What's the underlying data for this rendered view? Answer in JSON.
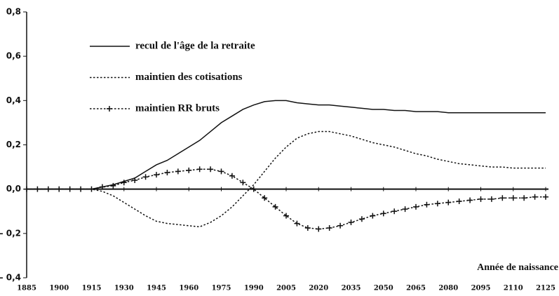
{
  "chart_data": {
    "type": "line",
    "xlabel": "Année de naissance",
    "x": [
      1885,
      1890,
      1895,
      1900,
      1905,
      1910,
      1915,
      1920,
      1925,
      1930,
      1935,
      1940,
      1945,
      1950,
      1955,
      1960,
      1965,
      1970,
      1975,
      1980,
      1985,
      1990,
      1995,
      2000,
      2005,
      2010,
      2015,
      2020,
      2025,
      2030,
      2035,
      2040,
      2045,
      2050,
      2055,
      2060,
      2065,
      2070,
      2075,
      2080,
      2085,
      2090,
      2095,
      2100,
      2105,
      2110,
      2115,
      2120,
      2125
    ],
    "series": [
      {
        "name": "recul de l'âge de la retraite",
        "color": "#111111",
        "linestyle": "solid",
        "marker": "none",
        "values": [
          0,
          0,
          0,
          0,
          0,
          0,
          0,
          0.01,
          0.02,
          0.035,
          0.05,
          0.08,
          0.11,
          0.13,
          0.16,
          0.19,
          0.22,
          0.26,
          0.3,
          0.33,
          0.36,
          0.38,
          0.395,
          0.4,
          0.4,
          0.39,
          0.385,
          0.38,
          0.38,
          0.375,
          0.37,
          0.365,
          0.36,
          0.36,
          0.355,
          0.355,
          0.35,
          0.35,
          0.35,
          0.345,
          0.345,
          0.345,
          0.345,
          0.345,
          0.345,
          0.345,
          0.345,
          0.345,
          0.345
        ]
      },
      {
        "name": "maintien des cotisations",
        "color": "#111111",
        "linestyle": "dotted",
        "marker": "none",
        "values": [
          0,
          0,
          0,
          0,
          0,
          0,
          0,
          -0.01,
          -0.03,
          -0.06,
          -0.09,
          -0.12,
          -0.145,
          -0.155,
          -0.16,
          -0.165,
          -0.17,
          -0.15,
          -0.12,
          -0.08,
          -0.03,
          0.02,
          0.08,
          0.14,
          0.19,
          0.23,
          0.25,
          0.26,
          0.26,
          0.25,
          0.24,
          0.225,
          0.21,
          0.2,
          0.19,
          0.175,
          0.16,
          0.15,
          0.135,
          0.125,
          0.115,
          0.11,
          0.105,
          0.1,
          0.1,
          0.095,
          0.095,
          0.095,
          0.095
        ]
      },
      {
        "name": "maintien RR bruts",
        "color": "#111111",
        "linestyle": "dotted",
        "marker": "+",
        "values": [
          0,
          0,
          0,
          0,
          0,
          0,
          0,
          0.01,
          0.015,
          0.03,
          0.04,
          0.055,
          0.065,
          0.075,
          0.08,
          0.085,
          0.09,
          0.09,
          0.08,
          0.06,
          0.03,
          0.0,
          -0.04,
          -0.08,
          -0.12,
          -0.155,
          -0.175,
          -0.18,
          -0.175,
          -0.165,
          -0.15,
          -0.135,
          -0.12,
          -0.11,
          -0.1,
          -0.09,
          -0.08,
          -0.07,
          -0.065,
          -0.06,
          -0.055,
          -0.05,
          -0.045,
          -0.045,
          -0.04,
          -0.04,
          -0.04,
          -0.035,
          -0.035
        ]
      }
    ],
    "xlim": [
      1885,
      2125
    ],
    "xticks": [
      1885,
      1900,
      1915,
      1930,
      1945,
      1960,
      1975,
      1990,
      2005,
      2020,
      2035,
      2050,
      2065,
      2080,
      2095,
      2110,
      2125
    ],
    "ylim": [
      -0.4,
      0.8
    ],
    "yticks": [
      {
        "value": -0.4,
        "label": "– 0,4"
      },
      {
        "value": -0.2,
        "label": "– 0,2"
      },
      {
        "value": 0,
        "label": "0,0"
      },
      {
        "value": 0.2,
        "label": "0,2"
      },
      {
        "value": 0.4,
        "label": "0,4"
      },
      {
        "value": 0.6,
        "label": "0,6"
      },
      {
        "value": 0.8,
        "label": "0,8"
      }
    ],
    "grid": false,
    "legend": "upper left"
  }
}
